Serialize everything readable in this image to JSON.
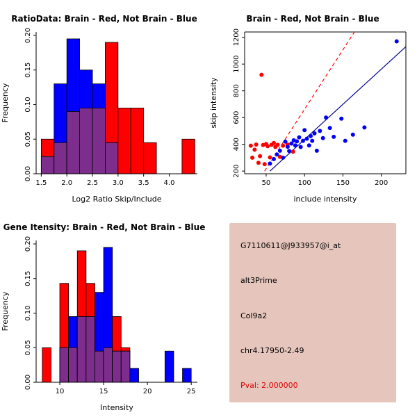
{
  "window": {
    "background": "#ffffff"
  },
  "chart_data": [
    {
      "id": "ratio-histogram",
      "type": "bar",
      "title": "RatioData: Brain - Red, Not Brain - Blue",
      "xlabel": "Log2 Ratio Skip/Include",
      "ylabel": "Frequency",
      "bin_start": 1.5,
      "bin_width": 0.25,
      "xlim": [
        1.4,
        4.55
      ],
      "ylim": [
        0,
        0.205
      ],
      "xticks": [
        "1.5",
        "2.0",
        "2.5",
        "3.0",
        "3.5",
        "4.0"
      ],
      "yticks": [
        "0.00",
        "0.05",
        "0.10",
        "0.15",
        "0.20"
      ],
      "overlap_color": "#7D2E8C",
      "grid": false,
      "series": [
        {
          "name": "Brain",
          "color": "#FF0000",
          "values": [
            0.05,
            0.045,
            0.09,
            0.095,
            0.095,
            0.19,
            0.095,
            0.095,
            0.045,
            0,
            0,
            0.05
          ]
        },
        {
          "name": "Not Brain",
          "color": "#0000FF",
          "values": [
            0.025,
            0.13,
            0.195,
            0.15,
            0.13,
            0.045,
            0,
            0,
            0,
            0,
            0,
            0
          ]
        }
      ]
    },
    {
      "id": "intensity-scatter",
      "type": "scatter",
      "title": "Brain - Red, Not Brain - Blue",
      "xlabel": "include intensity",
      "ylabel": "skip intensity",
      "xlim": [
        22,
        232
      ],
      "ylim": [
        180,
        1240
      ],
      "xticks": [
        "50",
        "100",
        "150",
        "200"
      ],
      "yticks": [
        "200",
        "400",
        "600",
        "800",
        "1000",
        "1200"
      ],
      "grid": false,
      "series": [
        {
          "name": "Brain",
          "color": "#FF0000",
          "points": [
            [
              30,
              390
            ],
            [
              32,
              300
            ],
            [
              35,
              360
            ],
            [
              37,
              398
            ],
            [
              40,
              262
            ],
            [
              42,
              312
            ],
            [
              44,
              920
            ],
            [
              46,
              395
            ],
            [
              48,
              252
            ],
            [
              50,
              402
            ],
            [
              52,
              386
            ],
            [
              55,
              302
            ],
            [
              57,
              396
            ],
            [
              60,
              410
            ],
            [
              62,
              380
            ],
            [
              65,
              396
            ],
            [
              68,
              306
            ],
            [
              72,
              390
            ],
            [
              78,
              398
            ],
            [
              85,
              345
            ]
          ]
        },
        {
          "name": "Not Brain",
          "color": "#0000FF",
          "points": [
            [
              55,
              256
            ],
            [
              60,
              290
            ],
            [
              64,
              324
            ],
            [
              68,
              352
            ],
            [
              72,
              300
            ],
            [
              75,
              420
            ],
            [
              78,
              382
            ],
            [
              80,
              350
            ],
            [
              83,
              406
            ],
            [
              86,
              430
            ],
            [
              88,
              392
            ],
            [
              90,
              422
            ],
            [
              93,
              452
            ],
            [
              95,
              380
            ],
            [
              98,
              426
            ],
            [
              100,
              506
            ],
            [
              103,
              442
            ],
            [
              106,
              392
            ],
            [
              108,
              462
            ],
            [
              110,
              426
            ],
            [
              113,
              482
            ],
            [
              116,
              352
            ],
            [
              120,
              500
            ],
            [
              124,
              446
            ],
            [
              128,
              600
            ],
            [
              133,
              522
            ],
            [
              138,
              456
            ],
            [
              148,
              592
            ],
            [
              153,
              426
            ],
            [
              163,
              472
            ],
            [
              178,
              526
            ],
            [
              220,
              1170
            ]
          ]
        }
      ],
      "lines": [
        {
          "name": "brain-fit",
          "color": "#FF0000",
          "dash": true,
          "x1": 48,
          "y1": 200,
          "x2": 165,
          "y2": 1240
        },
        {
          "name": "not-brain-fit",
          "color": "#00008B",
          "dash": false,
          "x1": 55,
          "y1": 200,
          "x2": 232,
          "y2": 1130
        }
      ]
    },
    {
      "id": "gene-intensity-histogram",
      "type": "bar",
      "title": "Gene Itensity: Brain - Red, Not Brain - Blue",
      "xlabel": "Intensity",
      "ylabel": "Frequency",
      "bin_start": 8,
      "bin_width": 1,
      "xlim": [
        7.3,
        25.7
      ],
      "ylim": [
        0,
        0.205
      ],
      "xticks": [
        "10",
        "15",
        "20",
        "25"
      ],
      "yticks": [
        "0.00",
        "0.05",
        "0.10",
        "0.15",
        "0.20"
      ],
      "overlap_color": "#7D2E8C",
      "grid": false,
      "series": [
        {
          "name": "Brain",
          "color": "#FF0000",
          "values": [
            0.05,
            0,
            0.143,
            0.05,
            0.19,
            0.143,
            0.045,
            0.05,
            0.095,
            0.05,
            0,
            0,
            0,
            0,
            0,
            0,
            0
          ]
        },
        {
          "name": "Not Brain",
          "color": "#0000FF",
          "values": [
            0,
            0,
            0.05,
            0.095,
            0.095,
            0.095,
            0.13,
            0.195,
            0.045,
            0.045,
            0.02,
            0,
            0,
            0,
            0.045,
            0,
            0.02
          ]
        }
      ]
    }
  ],
  "info_box": {
    "bg": "#E6C6BC",
    "lines": [
      {
        "label": "probe-id",
        "text": "G7110611@J933957@i_at",
        "color": "#000000"
      },
      {
        "label": "event-type",
        "text": "alt3Prime",
        "color": "#000000"
      },
      {
        "label": "gene-symbol",
        "text": "Col9a2",
        "color": "#000000"
      },
      {
        "label": "locus",
        "text": "chr4.17950-2.49",
        "color": "#000000"
      },
      {
        "label": "pval",
        "text": "Pval: 2.000000",
        "color": "#E00000"
      }
    ]
  }
}
